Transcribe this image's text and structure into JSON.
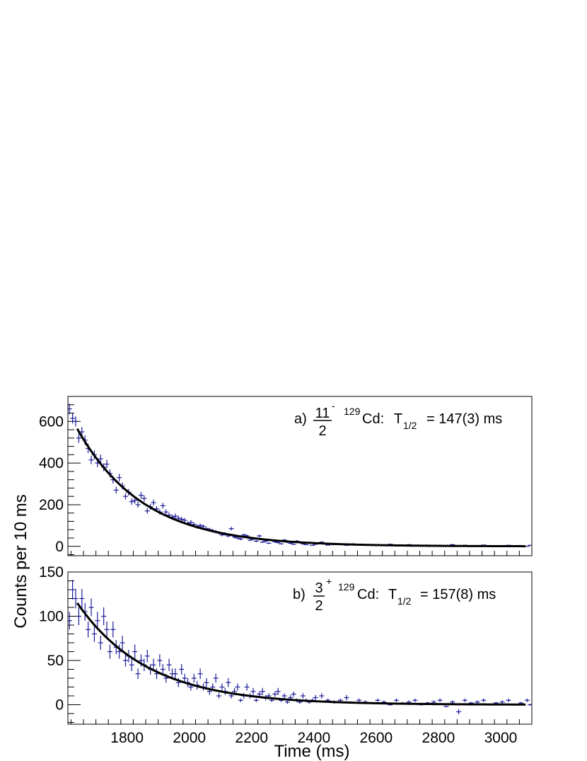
{
  "figure": {
    "ylabel": "Counts per 10 ms",
    "xlabel": "Time (ms)"
  },
  "chart_data": [
    {
      "type": "scatter",
      "panel": "a",
      "annotation": {
        "prefix": "a)",
        "spin_num": "11",
        "spin_den": "2",
        "parity": "-",
        "mass": "129",
        "element": "Cd:",
        "t_main": "T",
        "t_sub": "1/2",
        "value": "= 147(3) ms"
      },
      "xlim": [
        1610,
        3100
      ],
      "ylim": [
        -45,
        720
      ],
      "yticks": [
        0,
        200,
        400,
        600
      ],
      "fit": {
        "A0": 565,
        "t0": 1640,
        "half_life": 147,
        "offset": 0,
        "x_start": 1640,
        "x_end": 3080
      },
      "series": [
        {
          "x": [
            1615,
            1625,
            1635,
            1645,
            1655,
            1665,
            1675,
            1685,
            1695,
            1705,
            1715,
            1725,
            1735,
            1745,
            1755,
            1765,
            1775,
            1785,
            1795,
            1805,
            1815,
            1825,
            1835,
            1845,
            1855,
            1865,
            1875,
            1885,
            1895,
            1905,
            1915,
            1925,
            1935,
            1945,
            1955,
            1965,
            1975,
            1985,
            1995,
            2005,
            2015,
            2025,
            2035,
            2045,
            2055,
            2065,
            2075,
            2085,
            2095,
            2105,
            2115,
            2125,
            2135,
            2145,
            2155,
            2165,
            2175,
            2185,
            2195,
            2205,
            2215,
            2225,
            2235,
            2245,
            2255,
            2265,
            2275,
            2285,
            2295,
            2305,
            2315,
            2325,
            2335,
            2345,
            2355,
            2365,
            2375,
            2385,
            2395,
            2405,
            2425,
            2445,
            2465,
            2485,
            2505,
            2525,
            2545,
            2565,
            2585,
            2605,
            2625,
            2645,
            2665,
            2685,
            2705,
            2725,
            2745,
            2765,
            2785,
            2805,
            2825,
            2845,
            2865,
            2885,
            2905,
            2925,
            2945,
            2965,
            2985,
            3005,
            3025,
            3045,
            3065,
            3085,
            3095
          ],
          "y": [
            660,
            615,
            600,
            520,
            550,
            510,
            470,
            415,
            440,
            400,
            420,
            380,
            395,
            350,
            320,
            270,
            330,
            290,
            240,
            260,
            215,
            220,
            200,
            245,
            230,
            170,
            190,
            210,
            180,
            165,
            195,
            165,
            150,
            140,
            145,
            135,
            130,
            125,
            110,
            115,
            105,
            95,
            100,
            95,
            85,
            80,
            75,
            70,
            65,
            55,
            60,
            50,
            85,
            45,
            40,
            35,
            55,
            50,
            30,
            35,
            25,
            50,
            20,
            25,
            15,
            30,
            22,
            18,
            12,
            30,
            20,
            15,
            10,
            25,
            18,
            12,
            8,
            15,
            5,
            10,
            20,
            6,
            8,
            10,
            5,
            12,
            8,
            6,
            5,
            8,
            4,
            10,
            6,
            3,
            8,
            2,
            4,
            6,
            0,
            5,
            3,
            8,
            2,
            5,
            0,
            3,
            6,
            2,
            0,
            3,
            5,
            0,
            2,
            0,
            5
          ],
          "err": [
            26,
            25,
            24,
            23,
            23,
            23,
            22,
            20,
            21,
            20,
            21,
            19,
            20,
            19,
            18,
            16,
            18,
            17,
            15,
            16,
            15,
            15,
            14,
            16,
            15,
            13,
            14,
            14,
            13,
            13,
            14,
            13,
            12,
            12,
            12,
            12,
            11,
            11,
            10,
            11,
            10,
            10,
            10,
            10,
            9,
            9,
            9,
            8,
            8,
            7,
            8,
            7,
            9,
            7,
            6,
            6,
            7,
            7,
            5,
            6,
            5,
            7,
            4,
            5,
            4,
            5,
            5,
            4,
            3,
            5,
            4,
            4,
            3,
            5,
            4,
            3,
            3,
            4,
            2,
            3,
            4,
            2,
            3,
            3,
            2,
            3,
            3,
            2,
            2,
            3,
            2,
            3,
            2,
            2,
            3,
            1,
            2,
            2,
            1,
            2,
            2,
            3,
            1,
            2,
            1,
            2,
            2,
            1,
            1,
            2,
            2,
            1,
            1,
            1,
            2
          ]
        }
      ]
    },
    {
      "type": "scatter",
      "panel": "b",
      "annotation": {
        "prefix": "b)",
        "spin_num": "3",
        "spin_den": "2",
        "parity": "+",
        "mass": "129",
        "element": "Cd:",
        "t_main": "T",
        "t_sub": "1/2",
        "value": "= 157(8) ms"
      },
      "xlim": [
        1610,
        3100
      ],
      "ylim": [
        -22,
        150
      ],
      "yticks": [
        0,
        50,
        100,
        150
      ],
      "fit": {
        "A0": 115,
        "t0": 1640,
        "half_life": 157,
        "offset": 0,
        "x_start": 1640,
        "x_end": 3080
      },
      "series": [
        {
          "x": [
            1615,
            1625,
            1635,
            1645,
            1655,
            1665,
            1675,
            1685,
            1695,
            1705,
            1715,
            1725,
            1735,
            1745,
            1755,
            1765,
            1775,
            1785,
            1795,
            1805,
            1815,
            1825,
            1835,
            1845,
            1855,
            1865,
            1875,
            1885,
            1895,
            1905,
            1915,
            1925,
            1935,
            1945,
            1955,
            1965,
            1975,
            1985,
            1995,
            2005,
            2015,
            2025,
            2035,
            2045,
            2055,
            2065,
            2075,
            2085,
            2095,
            2105,
            2115,
            2125,
            2135,
            2145,
            2155,
            2165,
            2175,
            2185,
            2195,
            2205,
            2215,
            2225,
            2235,
            2245,
            2255,
            2265,
            2275,
            2285,
            2295,
            2305,
            2315,
            2325,
            2335,
            2345,
            2355,
            2365,
            2375,
            2385,
            2395,
            2405,
            2425,
            2445,
            2465,
            2485,
            2505,
            2525,
            2545,
            2565,
            2585,
            2605,
            2625,
            2645,
            2665,
            2685,
            2705,
            2725,
            2745,
            2765,
            2785,
            2805,
            2825,
            2845,
            2865,
            2885,
            2905,
            2925,
            2945,
            2965,
            2985,
            3005,
            3025,
            3045,
            3065,
            3085,
            3095
          ],
          "y": [
            95,
            130,
            120,
            100,
            120,
            105,
            85,
            110,
            80,
            95,
            70,
            100,
            85,
            60,
            85,
            65,
            60,
            70,
            50,
            55,
            45,
            60,
            35,
            50,
            45,
            55,
            40,
            45,
            35,
            50,
            40,
            30,
            45,
            35,
            35,
            25,
            40,
            30,
            25,
            20,
            30,
            22,
            35,
            20,
            25,
            15,
            20,
            30,
            10,
            20,
            15,
            25,
            10,
            15,
            20,
            5,
            10,
            20,
            10,
            15,
            5,
            12,
            15,
            8,
            10,
            5,
            12,
            15,
            5,
            10,
            3,
            8,
            12,
            5,
            3,
            10,
            5,
            3,
            5,
            8,
            10,
            5,
            3,
            5,
            8,
            2,
            5,
            3,
            2,
            5,
            3,
            0,
            5,
            2,
            3,
            5,
            0,
            2,
            3,
            5,
            -2,
            3,
            -8,
            5,
            2,
            3,
            5,
            0,
            2,
            3,
            5,
            0,
            2,
            5,
            0
          ],
          "err": [
            10,
            11,
            11,
            10,
            11,
            10,
            9,
            10,
            9,
            10,
            8,
            10,
            9,
            8,
            9,
            8,
            8,
            8,
            7,
            7,
            7,
            8,
            6,
            7,
            7,
            7,
            6,
            7,
            6,
            7,
            6,
            5,
            7,
            6,
            6,
            5,
            6,
            5,
            5,
            4,
            5,
            5,
            6,
            4,
            5,
            4,
            4,
            5,
            3,
            4,
            4,
            5,
            3,
            4,
            4,
            2,
            3,
            4,
            3,
            4,
            2,
            3,
            4,
            3,
            3,
            2,
            3,
            4,
            2,
            3,
            2,
            3,
            3,
            2,
            2,
            3,
            2,
            2,
            2,
            3,
            3,
            2,
            2,
            2,
            3,
            1,
            2,
            2,
            1,
            2,
            2,
            1,
            2,
            1,
            2,
            2,
            1,
            1,
            2,
            2,
            1,
            2,
            3,
            2,
            1,
            2,
            2,
            1,
            1,
            2,
            2,
            1,
            1,
            2,
            1
          ]
        }
      ],
      "xticks": [
        1800,
        2000,
        2200,
        2400,
        2600,
        2800,
        3000
      ]
    }
  ]
}
